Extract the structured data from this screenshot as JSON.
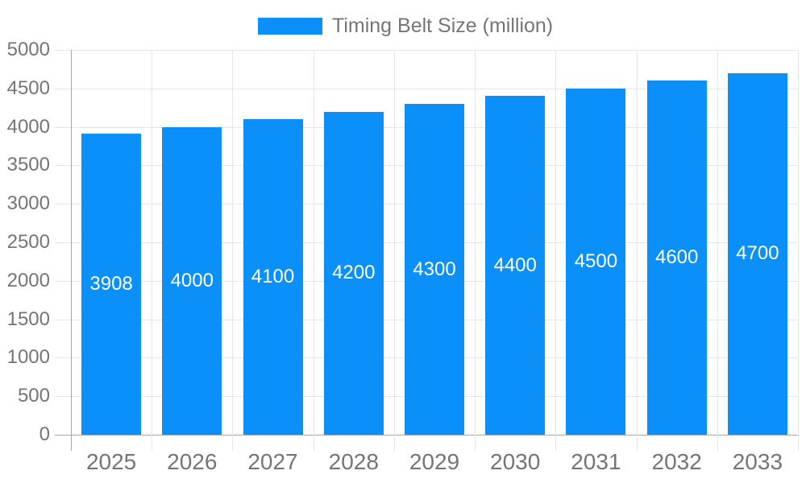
{
  "legend": {
    "label": "Timing Belt Size (million)"
  },
  "chart_data": {
    "type": "bar",
    "title": "",
    "legend_entries": [
      "Timing Belt Size (million)"
    ],
    "legend_position": "top",
    "categories": [
      "2025",
      "2026",
      "2027",
      "2028",
      "2029",
      "2030",
      "2031",
      "2032",
      "2033"
    ],
    "series": [
      {
        "name": "Timing Belt Size (million)",
        "values": [
          3908,
          4000,
          4100,
          4200,
          4300,
          4400,
          4500,
          4600,
          4700
        ]
      }
    ],
    "bar_value_labels": [
      "3908",
      "4000",
      "4100",
      "4200",
      "4300",
      "4400",
      "4500",
      "4600",
      "4700"
    ],
    "xlabel": "",
    "ylabel": "",
    "ylim": [
      0,
      5000
    ],
    "ytick_step": 500,
    "yticks": [
      0,
      500,
      1000,
      1500,
      2000,
      2500,
      3000,
      3500,
      4000,
      4500,
      5000
    ],
    "grid": true,
    "colors": {
      "bar": "#0a90f8",
      "grid": "#e6e6e6",
      "axis": "#a6a6a6",
      "tick_text": "#757575",
      "bar_label_text": "#ffffff"
    }
  }
}
